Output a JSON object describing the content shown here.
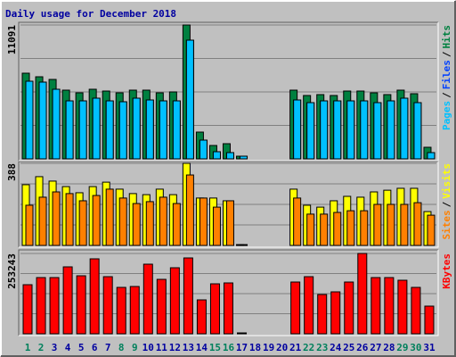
{
  "chart_data": {
    "type": "bar",
    "title": "Daily usage for December 2018",
    "title_color": "#0000a0",
    "categories": [
      "1",
      "2",
      "3",
      "4",
      "5",
      "6",
      "7",
      "8",
      "9",
      "10",
      "11",
      "12",
      "13",
      "14",
      "15",
      "16",
      "17",
      "18",
      "19",
      "20",
      "21",
      "22",
      "23",
      "24",
      "25",
      "26",
      "27",
      "28",
      "29",
      "30",
      "31"
    ],
    "category_colors": [
      "#00805c",
      "#00805c",
      "#0000a0",
      "#0000a0",
      "#0000a0",
      "#0000a0",
      "#0000a0",
      "#00805c",
      "#00805c",
      "#0000a0",
      "#0000a0",
      "#0000a0",
      "#0000a0",
      "#0000a0",
      "#00805c",
      "#00805c",
      "#0000a0",
      "#0000a0",
      "#0000a0",
      "#0000a0",
      "#0000a0",
      "#00805c",
      "#00805c",
      "#0000a0",
      "#0000a0",
      "#0000a0",
      "#0000a0",
      "#0000a0",
      "#00805c",
      "#00805c",
      "#0000a0"
    ],
    "legend_separator": "/",
    "grid": true,
    "panels": [
      {
        "ylim": [
          0,
          11091
        ],
        "yticks": [
          11091
        ],
        "series": [
          {
            "name": "Hits",
            "color": "#008040",
            "values": [
              7098,
              6802,
              6581,
              5693,
              5472,
              5767,
              5619,
              5472,
              5693,
              5693,
              5472,
              5546,
              11091,
              2218,
              1109,
              1257,
              222,
              null,
              null,
              null,
              5693,
              5250,
              5324,
              5250,
              5619,
              5619,
              5472,
              5324,
              5693,
              5398,
              961
            ]
          },
          {
            "name": "Files",
            "color": "#0040ff",
            "values": [
              6433,
              6359,
              5767,
              4806,
              4806,
              5028,
              4806,
              4732,
              5028,
              4880,
              4806,
              4806,
              9834,
              1553,
              592,
              518,
              222,
              null,
              null,
              null,
              4880,
              4658,
              4806,
              4806,
              4806,
              4806,
              4658,
              4806,
              5028,
              4658,
              518
            ]
          },
          {
            "name": "Pages",
            "color": "#00c0ff",
            "values": [
              6433,
              6359,
              5767,
              4806,
              4806,
              5028,
              4806,
              4732,
              5028,
              4880,
              4806,
              4806,
              9834,
              1553,
              592,
              518,
              222,
              null,
              null,
              null,
              4880,
              4658,
              4806,
              4806,
              4806,
              4806,
              4658,
              4806,
              5028,
              4658,
              518
            ]
          }
        ]
      },
      {
        "ylim": [
          0,
          388
        ],
        "yticks": [
          388
        ],
        "series": [
          {
            "name": "Visits",
            "color": "#ffff00",
            "values": [
              287,
              325,
              304,
              278,
              249,
              278,
              299,
              266,
              245,
              240,
              266,
              240,
              388,
              224,
              224,
              211,
              4,
              null,
              null,
              null,
              266,
              190,
              181,
              211,
              232,
              228,
              253,
              261,
              270,
              270,
              160
            ]
          },
          {
            "name": "Sites",
            "color": "#ff8000",
            "values": [
              190,
              228,
              253,
              245,
              211,
              236,
              266,
              224,
              198,
              207,
              228,
              198,
              333,
              224,
              181,
              211,
              4,
              null,
              null,
              null,
              224,
              148,
              148,
              156,
              164,
              164,
              194,
              194,
              194,
              202,
              143
            ]
          }
        ]
      },
      {
        "ylim": [
          0,
          253243
        ],
        "yticks": [
          253243
        ],
        "series": [
          {
            "name": "KBytes",
            "color": "#ff0000",
            "values": [
              154759,
              177269,
              177269,
              211035,
              182897,
              236359,
              180083,
              146318,
              149131,
              219476,
              171642,
              208221,
              239173,
              106924,
              157573,
              160387,
              2814,
              null,
              null,
              null,
              163200,
              180083,
              123807,
              132249,
              163200,
              253243,
              177269,
              177269,
              168828,
              146318,
              87228
            ]
          }
        ]
      }
    ]
  }
}
